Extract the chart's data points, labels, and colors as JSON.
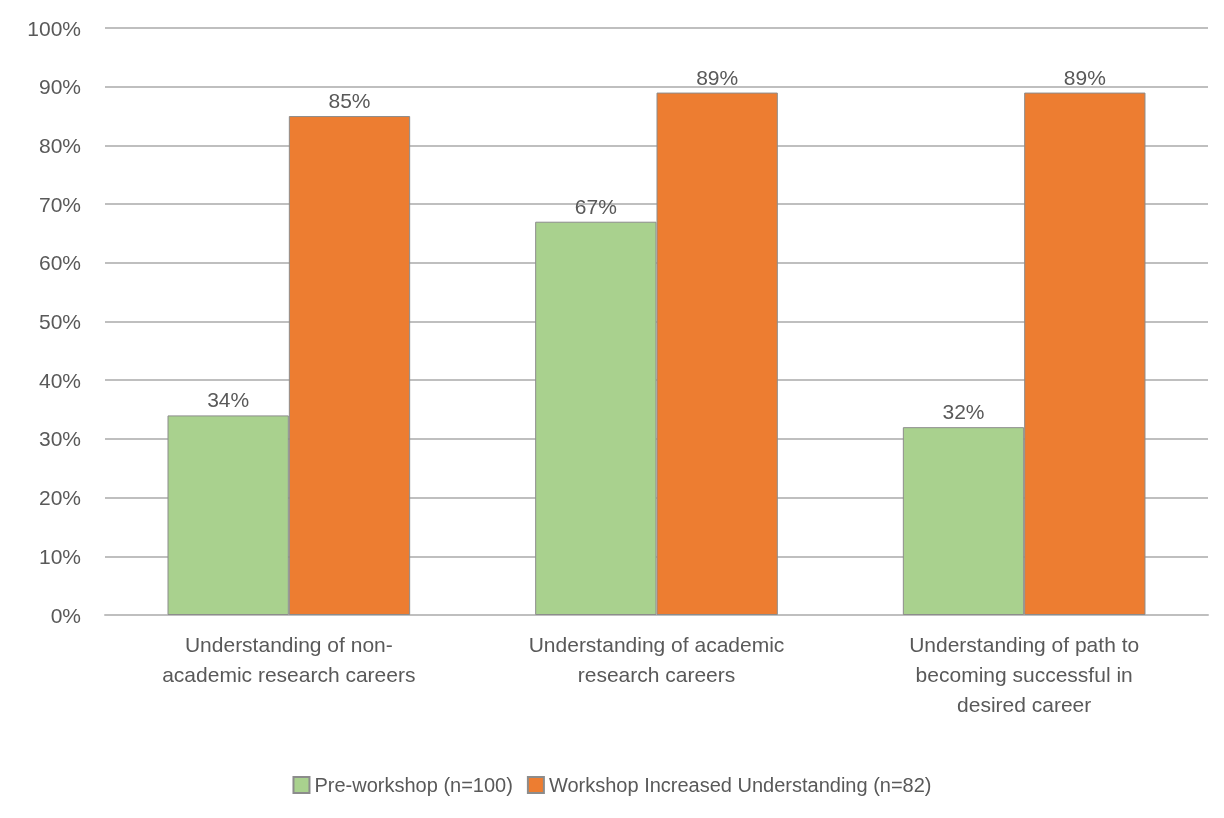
{
  "chart_data": {
    "type": "bar",
    "categories": [
      "Understanding of non-\nacademic research careers",
      "Understanding of academic\nresearch careers",
      "Understanding of path to\nbecoming successful in\ndesired career"
    ],
    "series": [
      {
        "name": "Pre-workshop (n=100)",
        "color": "#a9d18e",
        "values": [
          34,
          67,
          32
        ],
        "value_labels": [
          "34%",
          "67%",
          "32%"
        ]
      },
      {
        "name": "Workshop Increased Understanding (n=82)",
        "color": "#ed7d31",
        "values": [
          85,
          89,
          89
        ],
        "value_labels": [
          "85%",
          "89%",
          "89%"
        ]
      }
    ],
    "ylim": [
      0,
      100
    ],
    "yticks": [
      {
        "value": 0,
        "label": "0%"
      },
      {
        "value": 10,
        "label": "10%"
      },
      {
        "value": 20,
        "label": "20%"
      },
      {
        "value": 30,
        "label": "30%"
      },
      {
        "value": 40,
        "label": "40%"
      },
      {
        "value": 50,
        "label": "50%"
      },
      {
        "value": 60,
        "label": "60%"
      },
      {
        "value": 70,
        "label": "70%"
      },
      {
        "value": 80,
        "label": "80%"
      },
      {
        "value": 90,
        "label": "90%"
      },
      {
        "value": 100,
        "label": "100%"
      }
    ],
    "grid": "y",
    "legend": "bottom"
  }
}
